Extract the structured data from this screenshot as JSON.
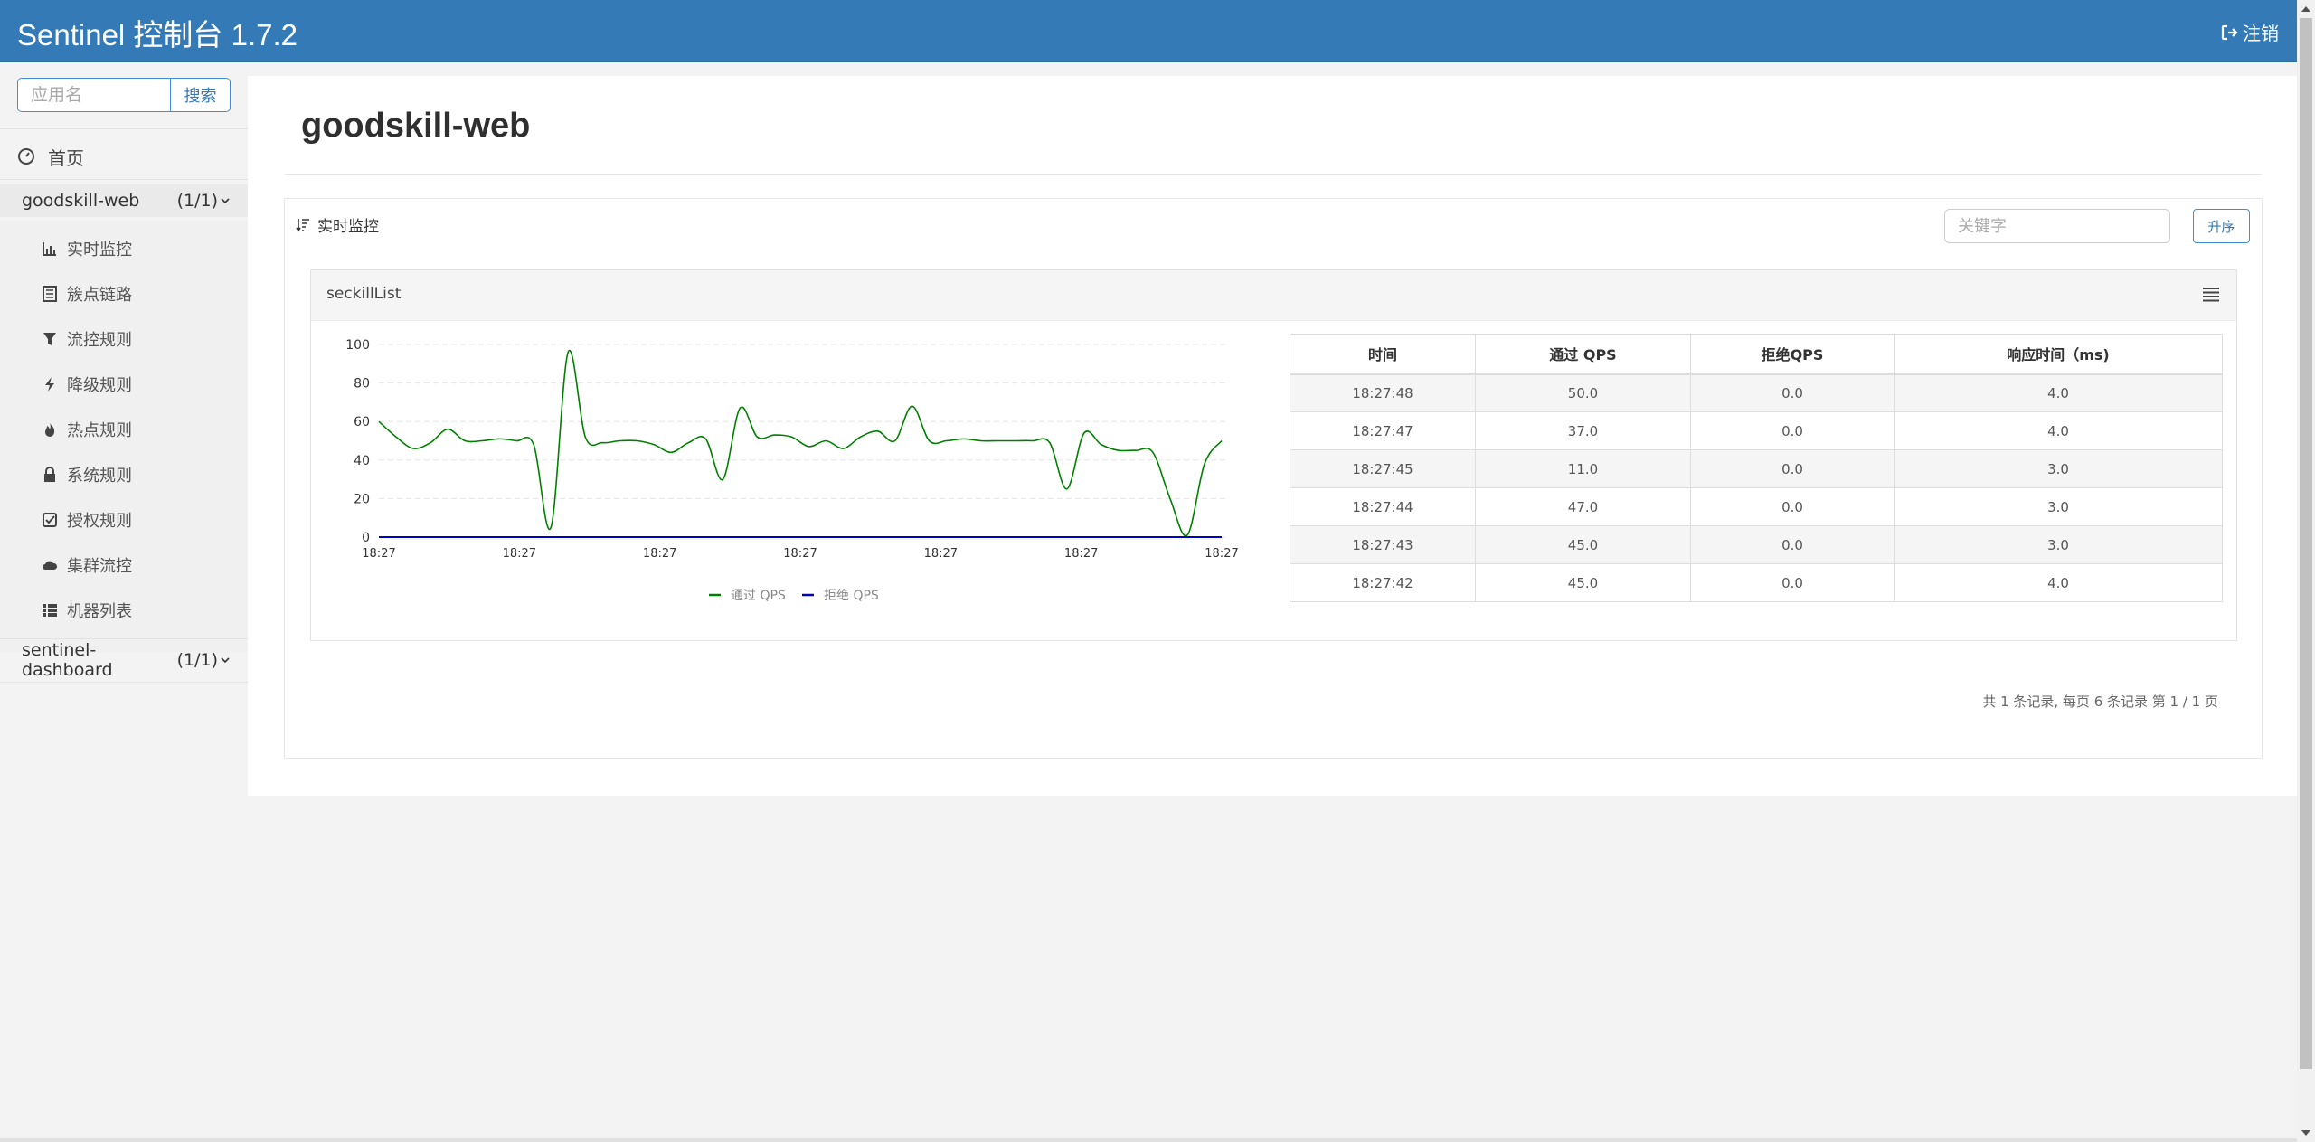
{
  "header": {
    "brand": "Sentinel 控制台 1.7.2",
    "logout_label": "注销"
  },
  "sidebar": {
    "search_placeholder": "应用名",
    "search_button": "搜索",
    "home_label": "首页",
    "apps": [
      {
        "name": "goodskill-web",
        "count": "(1/1)"
      },
      {
        "name": "sentinel-dashboard",
        "count": "(1/1)"
      }
    ],
    "menu": [
      {
        "label": "实时监控",
        "icon": "bar-chart-icon"
      },
      {
        "label": "簇点链路",
        "icon": "list-alt-icon"
      },
      {
        "label": "流控规则",
        "icon": "filter-icon"
      },
      {
        "label": "降级规则",
        "icon": "flash-icon"
      },
      {
        "label": "热点规则",
        "icon": "fire-icon"
      },
      {
        "label": "系统规则",
        "icon": "lock-icon"
      },
      {
        "label": "授权规则",
        "icon": "check-icon"
      },
      {
        "label": "集群流控",
        "icon": "cloud-icon"
      },
      {
        "label": "机器列表",
        "icon": "th-list-icon"
      }
    ]
  },
  "main": {
    "title": "goodskill-web",
    "panel_title": "实时监控",
    "keyword_placeholder": "关键字",
    "sort_button": "升序",
    "resource_name": "seckillList",
    "table": {
      "headers": [
        "时间",
        "通过 QPS",
        "拒绝QPS",
        "响应时间（ms)"
      ],
      "rows": [
        [
          "18:27:48",
          "50.0",
          "0.0",
          "4.0"
        ],
        [
          "18:27:47",
          "37.0",
          "0.0",
          "4.0"
        ],
        [
          "18:27:45",
          "11.0",
          "0.0",
          "3.0"
        ],
        [
          "18:27:44",
          "47.0",
          "0.0",
          "3.0"
        ],
        [
          "18:27:43",
          "45.0",
          "0.0",
          "3.0"
        ],
        [
          "18:27:42",
          "45.0",
          "0.0",
          "4.0"
        ]
      ]
    },
    "pager": "共 1 条记录, 每页 6 条记录 第 1 / 1 页"
  },
  "chart_data": {
    "type": "line",
    "xlabel": "",
    "ylabel": "",
    "ylim": [
      0,
      100
    ],
    "y_ticks": [
      0,
      20,
      40,
      60,
      80,
      100
    ],
    "x_tick_labels": [
      "18:27",
      "18:27",
      "18:27",
      "18:27",
      "18:27",
      "18:27",
      "18:27"
    ],
    "grid": true,
    "legend_position": "bottom",
    "series": [
      {
        "name": "通过 QPS",
        "color": "#008000",
        "values": [
          60,
          52,
          46,
          49,
          56,
          50,
          50,
          51,
          50,
          48,
          5,
          96,
          52,
          49,
          50,
          50,
          48,
          44,
          49,
          51,
          30,
          67,
          52,
          53,
          52,
          47,
          50,
          46,
          52,
          55,
          50,
          68,
          50,
          50,
          51,
          50,
          50,
          50,
          50,
          49,
          25,
          54,
          48,
          45,
          45,
          44,
          20,
          1,
          38,
          50
        ]
      },
      {
        "name": "拒绝 QPS",
        "color": "#0000cd",
        "values": [
          0,
          0,
          0,
          0,
          0,
          0,
          0,
          0,
          0,
          0,
          0,
          0,
          0,
          0,
          0,
          0,
          0,
          0,
          0,
          0,
          0,
          0,
          0,
          0,
          0,
          0,
          0,
          0,
          0,
          0,
          0,
          0,
          0,
          0,
          0,
          0,
          0,
          0,
          0,
          0,
          0,
          0,
          0,
          0,
          0,
          0,
          0,
          0,
          0,
          0
        ]
      }
    ]
  }
}
